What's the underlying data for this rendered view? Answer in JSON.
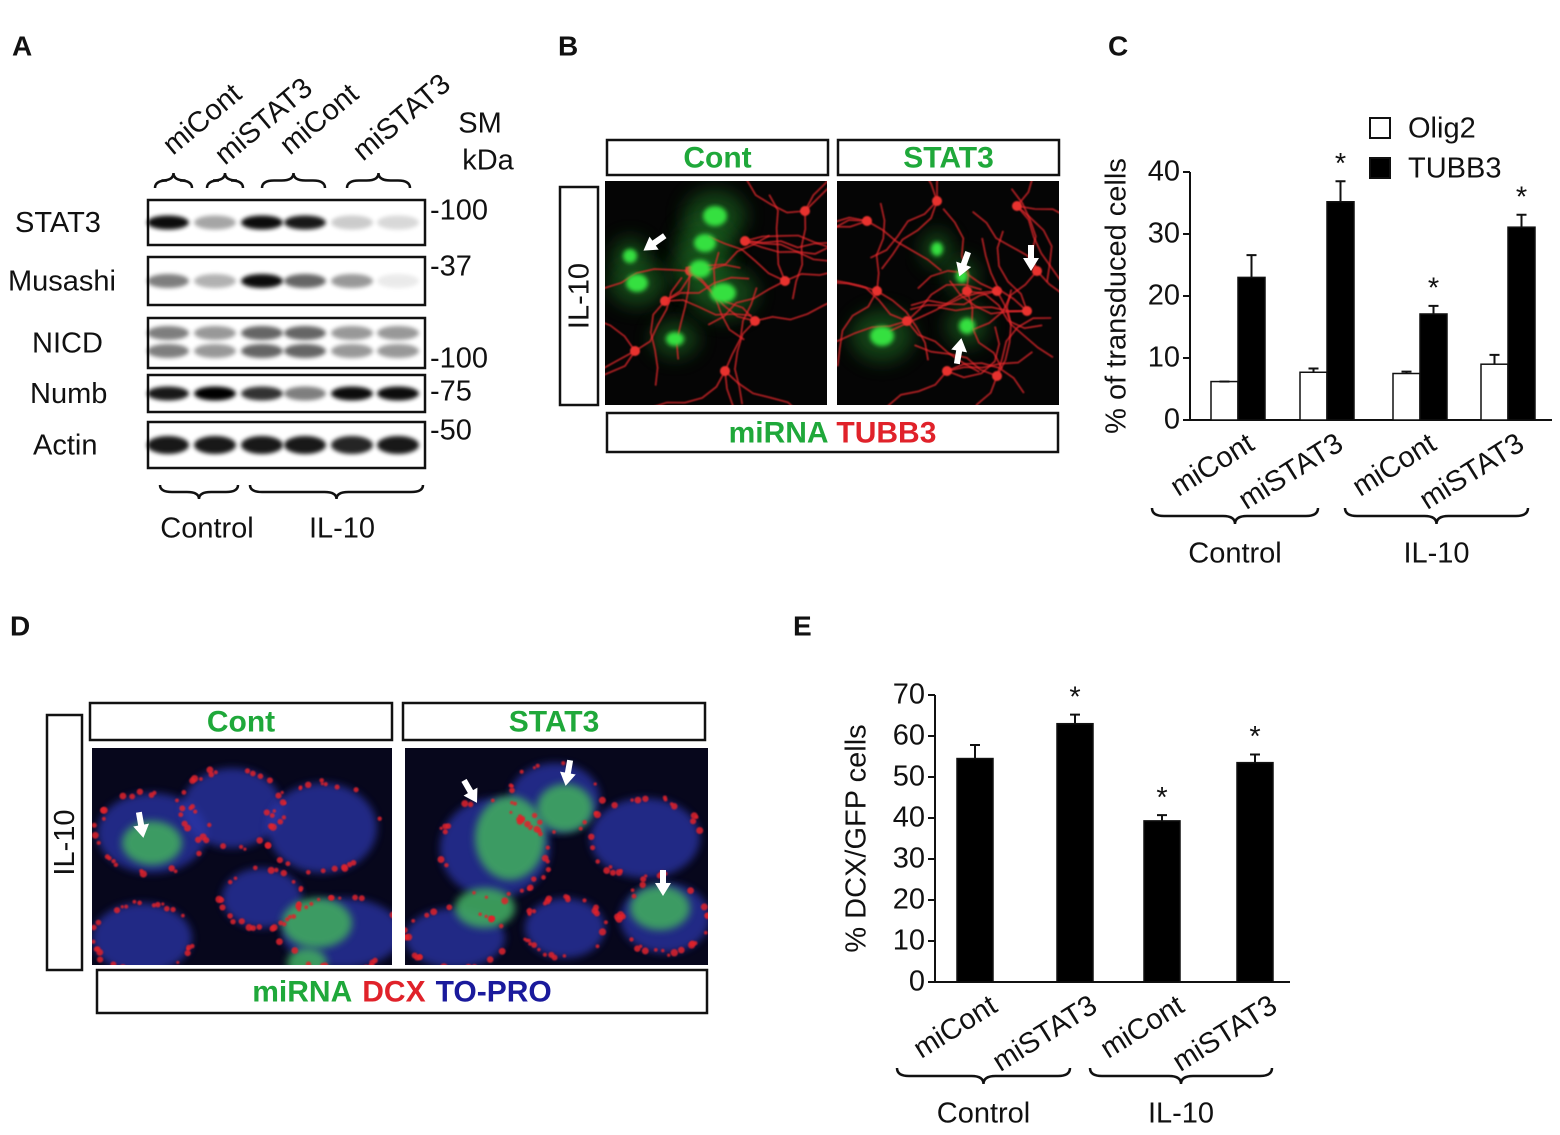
{
  "panel_labels": [
    "A",
    "B",
    "C",
    "D",
    "E"
  ],
  "blot": {
    "lanes": [
      "miCont",
      "miSTAT3",
      "miCont",
      "miSTAT3"
    ],
    "size_marker_title": [
      "SM",
      "kDa"
    ],
    "proteins": [
      "STAT3",
      "Musashi",
      "NICD",
      "Numb",
      "Actin"
    ],
    "size_markers": [
      "-100",
      "-37",
      "-100",
      "-75",
      "-50"
    ],
    "groups": [
      "Control",
      "IL-10"
    ]
  },
  "micrograph_b": {
    "columns": [
      "Cont",
      "STAT3"
    ],
    "row_label": "IL-10",
    "stain_legend": [
      {
        "text": "miRNA",
        "color": "#1fa83a"
      },
      {
        "text": "TUBB3",
        "color": "#e0222a"
      }
    ]
  },
  "micrograph_d": {
    "columns": [
      "Cont",
      "STAT3"
    ],
    "row_label": "IL-10",
    "stain_legend": [
      {
        "text": "miRNA",
        "color": "#1fa83a"
      },
      {
        "text": "DCX",
        "color": "#e0222a"
      },
      {
        "text": "TO-PRO",
        "color": "#1a1a9c"
      }
    ]
  },
  "chart_data": [
    {
      "type": "bar",
      "y_label": "% of transduced cells",
      "categories": [
        "miCont",
        "miSTAT3",
        "miCont",
        "miSTAT3"
      ],
      "groups": [
        "Control",
        "IL-10"
      ],
      "series": [
        {
          "name": "Olig2",
          "color": "#ffffff",
          "values": [
            6.2,
            7.7,
            7.5,
            9.0
          ],
          "errors": [
            0,
            0.6,
            0.3,
            1.5
          ],
          "annotations": [
            null,
            null,
            null,
            null
          ]
        },
        {
          "name": "TUBB3",
          "color": "#000000",
          "values": [
            23,
            35.2,
            17.1,
            31.1
          ],
          "errors": [
            3.6,
            3.3,
            1.3,
            2.0
          ],
          "annotations": [
            null,
            "*",
            "*",
            "*"
          ]
        }
      ],
      "ylim": [
        0,
        40
      ],
      "yticks": [
        0,
        10,
        20,
        30,
        40
      ],
      "legend": "upper right"
    },
    {
      "type": "bar",
      "y_label": "% DCX/GFP cells",
      "categories": [
        "miCont",
        "miSTAT3",
        "miCont",
        "miSTAT3"
      ],
      "groups": [
        "Control",
        "IL-10"
      ],
      "values": [
        54.5,
        63,
        39.3,
        53.5
      ],
      "errors": [
        3.3,
        2.2,
        1.4,
        2.0
      ],
      "annotations": [
        null,
        "*",
        "*",
        "*"
      ],
      "color": "#000000",
      "ylim": [
        0,
        70
      ],
      "yticks": [
        0,
        10,
        20,
        30,
        40,
        50,
        60,
        70
      ]
    }
  ]
}
